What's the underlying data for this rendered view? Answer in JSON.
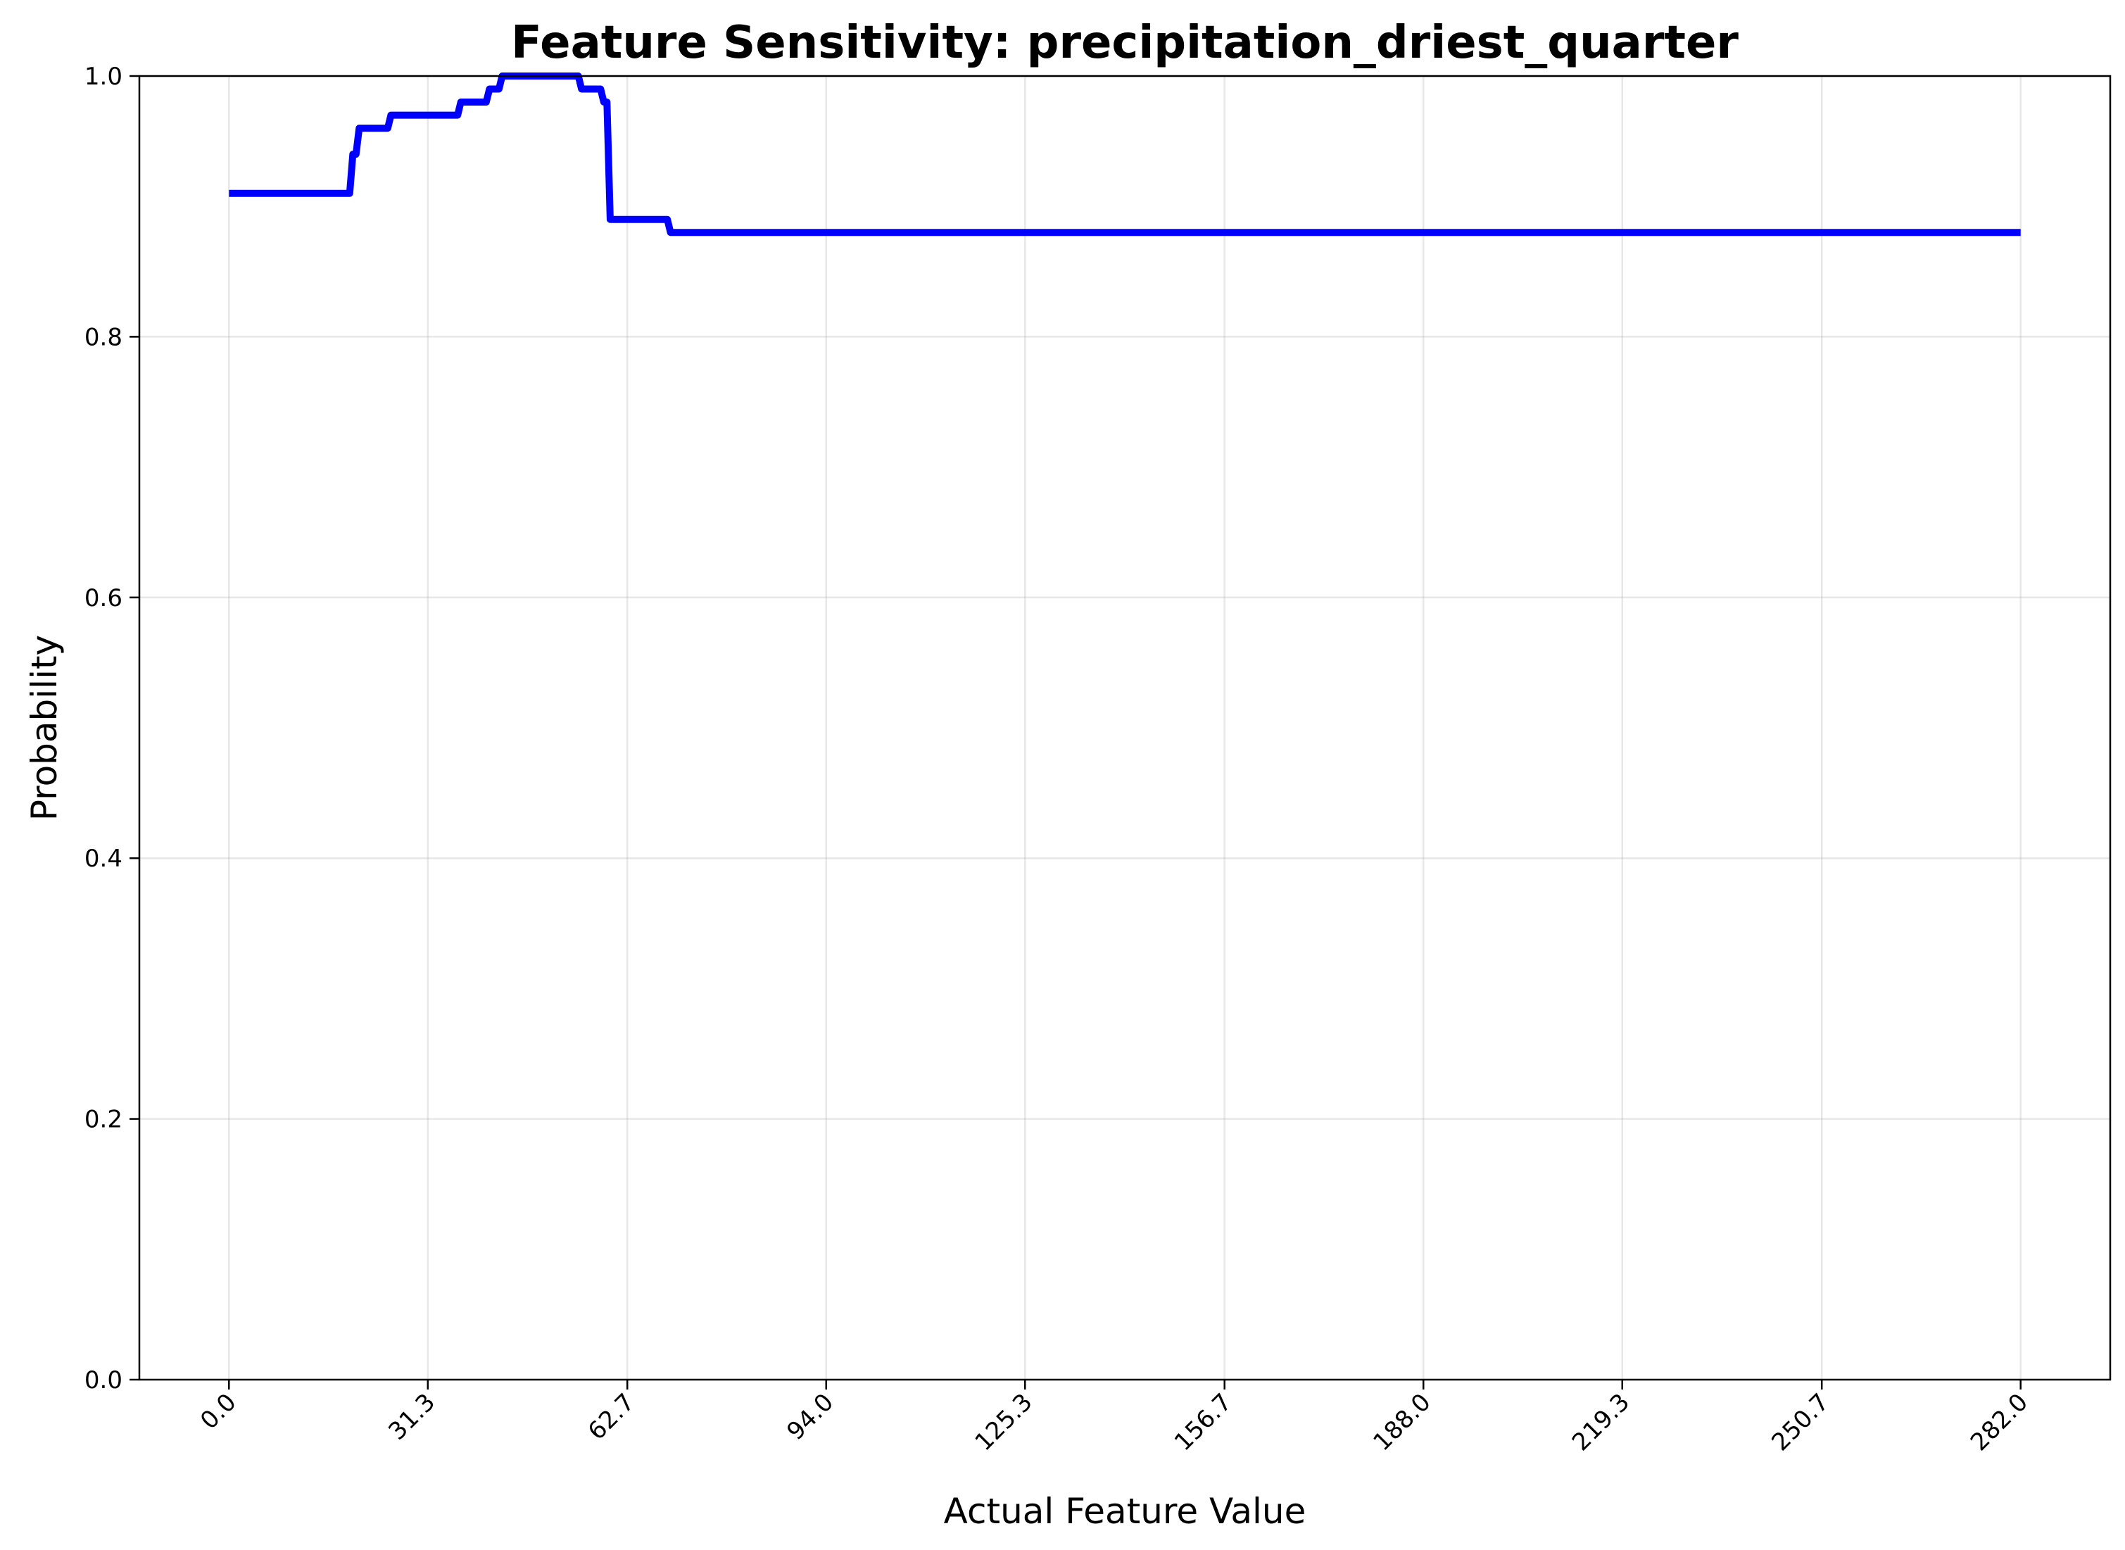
{
  "chart_data": {
    "type": "line",
    "title": "Feature Sensitivity: precipitation_driest_quarter",
    "xlabel": "Actual Feature Value",
    "ylabel": "Probability",
    "xlim": [
      -14.1,
      296.1
    ],
    "ylim": [
      0.0,
      1.0
    ],
    "grid": true,
    "x_ticks": [
      0.0,
      31.3,
      62.7,
      94.0,
      125.3,
      156.7,
      188.0,
      219.3,
      250.7,
      282.0
    ],
    "x_tick_labels": [
      "0.0",
      "31.3",
      "62.7",
      "94.0",
      "125.3",
      "156.7",
      "188.0",
      "219.3",
      "250.7",
      "282.0"
    ],
    "y_ticks": [
      0.0,
      0.2,
      0.4,
      0.6,
      0.8,
      1.0
    ],
    "y_tick_labels": [
      "0.0",
      "0.2",
      "0.4",
      "0.6",
      "0.8",
      "1.0"
    ],
    "series": [
      {
        "color": "#0000ff",
        "x": [
          0.0,
          19.0,
          19.5,
          20.0,
          20.5,
          21.0,
          25.0,
          25.5,
          36.0,
          36.5,
          40.5,
          41.0,
          42.5,
          43.0,
          43.5,
          44.0,
          55.0,
          55.5,
          58.5,
          59.0,
          59.5,
          60.0,
          69.0,
          69.5,
          282.0
        ],
        "y": [
          0.91,
          0.91,
          0.94,
          0.94,
          0.96,
          0.96,
          0.96,
          0.97,
          0.97,
          0.98,
          0.98,
          0.99,
          0.99,
          1.0,
          1.0,
          1.0,
          1.0,
          0.99,
          0.99,
          0.98,
          0.98,
          0.89,
          0.89,
          0.88,
          0.88
        ]
      }
    ]
  }
}
